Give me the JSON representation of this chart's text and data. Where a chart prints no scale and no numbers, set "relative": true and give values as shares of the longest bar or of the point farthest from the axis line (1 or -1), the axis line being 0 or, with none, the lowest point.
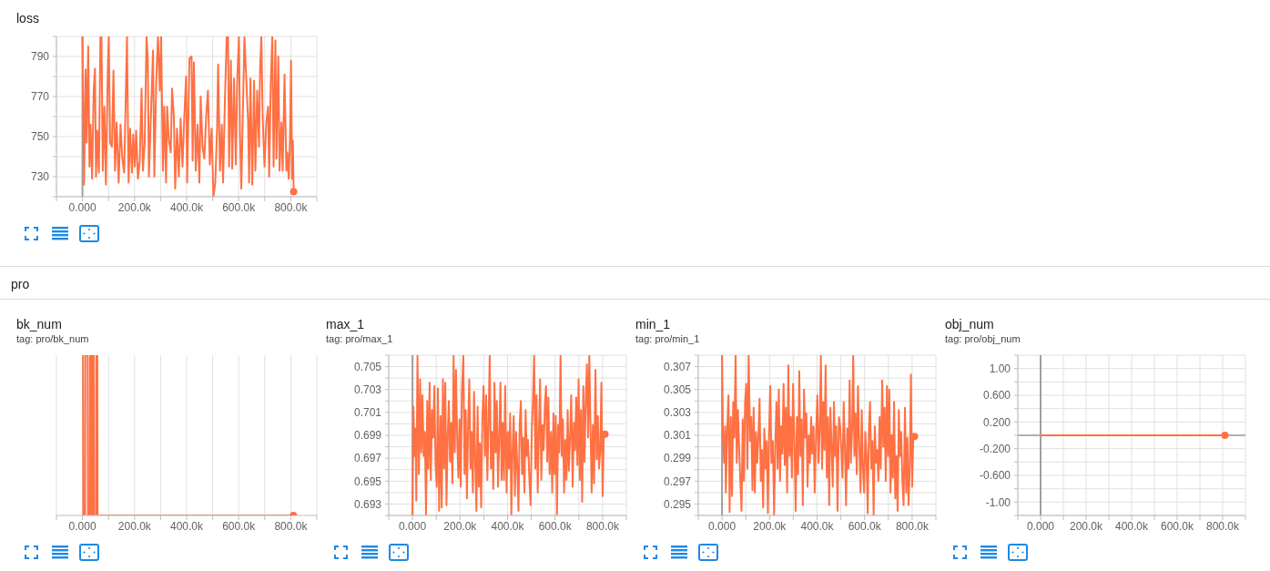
{
  "chart_data": [
    {
      "type": "line",
      "title": "loss",
      "x": [
        0,
        6000,
        12000,
        16000,
        22000,
        27000,
        31000,
        37000,
        43000,
        48000,
        52000,
        57000,
        63000,
        69000,
        73000,
        78000,
        84000,
        90000,
        97000,
        101000,
        106000,
        113000,
        119000,
        125000,
        131000,
        139000,
        146000,
        153000,
        160000,
        164000,
        171000,
        177000,
        183000,
        190000,
        195000,
        201000,
        206000,
        213000,
        220000,
        227000,
        232000,
        239000,
        246000,
        251000,
        255000,
        262000,
        271000,
        276000,
        283000,
        290000,
        297000,
        302000,
        309000,
        314000,
        321000,
        325000,
        332000,
        339000,
        344000,
        351000,
        356000,
        363000,
        370000,
        377000,
        384000,
        391000,
        398000,
        402000,
        411000,
        419000,
        423000,
        428000,
        435000,
        442000,
        449000,
        454000,
        461000,
        468000,
        475000,
        482000,
        489000,
        496000,
        503000,
        510000,
        517000,
        521000,
        528000,
        535000,
        540000,
        547000,
        554000,
        559000,
        563000,
        570000,
        575000,
        582000,
        589000,
        594000,
        601000,
        605000,
        610000,
        615000,
        622000,
        629000,
        636000,
        640000,
        645000,
        652000,
        659000,
        664000,
        671000,
        678000,
        682000,
        687000,
        692000,
        699000,
        706000,
        713000,
        717000,
        723000,
        729000,
        734000,
        741000,
        745000,
        752000,
        757000,
        764000,
        769000,
        776000,
        783000,
        787000,
        792000,
        797000,
        801000,
        805000,
        808000,
        811000
      ],
      "series": [
        {
          "color": "#ff7043",
          "values": [
            800,
            726,
            783.5,
            747,
            795,
            735,
            756,
            729,
            773,
            784,
            730,
            753,
            732,
            800,
            800,
            733,
            765,
            726,
            782,
            800,
            747,
            745,
            783,
            733,
            757,
            727,
            756,
            739,
            732,
            756,
            800,
            727,
            754,
            732,
            751,
            735,
            753,
            729,
            738,
            774,
            733,
            747,
            800,
            788,
            730,
            757,
            793,
            730,
            776,
            800,
            773,
            800,
            733,
            765,
            727,
            765,
            748,
            742,
            774,
            760,
            724,
            754,
            730,
            759,
            735,
            760,
            780,
            727,
            789,
            790,
            738,
            787,
            733,
            756,
            727,
            770,
            745,
            739,
            760,
            773,
            736,
            754,
            720,
            727,
            754,
            786,
            733,
            756,
            727,
            768,
            800,
            800,
            735,
            788,
            734,
            779,
            736,
            777,
            800,
            751,
            724,
            756,
            800,
            779,
            758,
            727,
            779,
            726,
            778,
            733,
            773,
            745,
            783,
            800,
            760,
            735,
            757,
            765,
            730,
            776,
            800,
            735,
            798,
            739,
            790,
            733,
            757,
            733,
            781,
            733,
            742,
            729,
            748,
            788,
            729,
            748,
            722.5
          ]
        },
        {
          "type": "scatter",
          "color": "#ff7043",
          "values": [
            null,
            null,
            null,
            null,
            null,
            null,
            null,
            null,
            null,
            null,
            null,
            null,
            null,
            null,
            null,
            null,
            null,
            null,
            null,
            null,
            null,
            null,
            null,
            null,
            null,
            null,
            null,
            null,
            null,
            null,
            null,
            null,
            null,
            null,
            null,
            null,
            null,
            null,
            null,
            null,
            null,
            null,
            null,
            null,
            null,
            null,
            null,
            null,
            null,
            null,
            null,
            null,
            null,
            null,
            null,
            null,
            null,
            null,
            null,
            null,
            null,
            null,
            null,
            null,
            null,
            null,
            null,
            null,
            null,
            null,
            null,
            null,
            null,
            null,
            null,
            null,
            null,
            null,
            null,
            null,
            null,
            null,
            null,
            null,
            null,
            null,
            null,
            null,
            null,
            null,
            null,
            null,
            null,
            null,
            null,
            null,
            null,
            null,
            null,
            null,
            null,
            null,
            null,
            null,
            null,
            null,
            null,
            null,
            null,
            null,
            null,
            null,
            null,
            null,
            null,
            null,
            null,
            null,
            null,
            null,
            null,
            null,
            null,
            null,
            null,
            null,
            null,
            null,
            null,
            null,
            null,
            null,
            null,
            null,
            null,
            null,
            722.5
          ]
        }
      ],
      "xlim": [
        -100000,
        900000
      ],
      "xticks": [
        {
          "value": -100000,
          "label": null
        },
        {
          "value": 0,
          "label": "0.000"
        },
        {
          "value": 100000,
          "label": null
        },
        {
          "value": 200000,
          "label": "200.0k"
        },
        {
          "value": 300000,
          "label": null
        },
        {
          "value": 400000,
          "label": "400.0k"
        },
        {
          "value": 500000,
          "label": null
        },
        {
          "value": 600000,
          "label": "600.0k"
        },
        {
          "value": 700000,
          "label": null
        },
        {
          "value": 800000,
          "label": "800.0k"
        },
        {
          "value": 900000,
          "label": null
        }
      ],
      "ylim": [
        720,
        800
      ],
      "yticks": [
        {
          "value": 720,
          "label": null
        },
        730,
        {
          "value": 740,
          "label": null
        },
        750,
        {
          "value": 760,
          "label": null
        },
        770,
        {
          "value": 780,
          "label": null
        },
        790,
        {
          "value": 800,
          "label": null
        }
      ],
      "grid": true,
      "ref_lines": [
        {
          "axis": "x",
          "value": 0,
          "color": "#9e9e9e"
        }
      ]
    },
    {
      "type": "line",
      "title": "bk_num",
      "subtitle": "tag: pro/bk_num",
      "annotations": [
        "pro"
      ],
      "relative": true,
      "x": [
        0,
        2000,
        3000,
        10000,
        11000,
        20000,
        21000,
        28000,
        29000,
        33000,
        34000,
        38000,
        39000,
        43000,
        44000,
        52000,
        53000,
        57000,
        58000,
        810000
      ],
      "series": [
        {
          "color": "#ff7043",
          "values": [
            1,
            1,
            0,
            0,
            1,
            1,
            0,
            0,
            1,
            1,
            0,
            0,
            1,
            1,
            0,
            0,
            1,
            1,
            0,
            0
          ]
        },
        {
          "type": "scatter",
          "color": "#ff7043",
          "values": [
            null,
            null,
            null,
            null,
            null,
            null,
            null,
            null,
            null,
            null,
            null,
            null,
            null,
            null,
            null,
            null,
            null,
            null,
            null,
            0
          ]
        }
      ],
      "xlim": [
        -100000,
        900000
      ],
      "xticks": [
        {
          "value": -100000,
          "label": null
        },
        {
          "value": 0,
          "label": "0.000"
        },
        {
          "value": 100000,
          "label": null
        },
        {
          "value": 200000,
          "label": "200.0k"
        },
        {
          "value": 300000,
          "label": null
        },
        {
          "value": 400000,
          "label": "400.0k"
        },
        {
          "value": 500000,
          "label": null
        },
        {
          "value": 600000,
          "label": "600.0k"
        },
        {
          "value": 700000,
          "label": null
        },
        {
          "value": 800000,
          "label": "800.0k"
        },
        {
          "value": 900000,
          "label": null
        }
      ],
      "grid": "x"
    },
    {
      "type": "line",
      "title": "max_1",
      "subtitle": "tag: pro/max_1",
      "x": [
        0,
        4000,
        9000,
        13000,
        16000,
        21000,
        27000,
        32000,
        37000,
        42000,
        47000,
        52000,
        57000,
        62000,
        67000,
        72000,
        77000,
        82000,
        87000,
        92000,
        97000,
        102000,
        107000,
        112000,
        118000,
        123000,
        128000,
        133000,
        138000,
        143000,
        148000,
        153000,
        158000,
        163000,
        168000,
        173000,
        178000,
        183000,
        188000,
        193000,
        198000,
        203000,
        208000,
        214000,
        219000,
        224000,
        229000,
        234000,
        239000,
        244000,
        249000,
        254000,
        259000,
        264000,
        269000,
        274000,
        279000,
        284000,
        289000,
        294000,
        299000,
        305000,
        310000,
        315000,
        320000,
        325000,
        330000,
        335000,
        340000,
        345000,
        350000,
        355000,
        360000,
        365000,
        370000,
        375000,
        380000,
        385000,
        390000,
        396000,
        401000,
        406000,
        411000,
        416000,
        421000,
        426000,
        431000,
        436000,
        441000,
        446000,
        451000,
        456000,
        461000,
        466000,
        471000,
        476000,
        481000,
        486000,
        492000,
        497000,
        502000,
        507000,
        512000,
        517000,
        522000,
        527000,
        532000,
        537000,
        542000,
        547000,
        552000,
        557000,
        562000,
        567000,
        572000,
        577000,
        583000,
        588000,
        593000,
        598000,
        603000,
        608000,
        613000,
        618000,
        623000,
        628000,
        633000,
        638000,
        643000,
        648000,
        653000,
        658000,
        663000,
        668000,
        674000,
        679000,
        684000,
        689000,
        694000,
        699000,
        704000,
        709000,
        714000,
        719000,
        724000,
        729000,
        734000,
        739000,
        744000,
        749000,
        754000,
        759000,
        764000,
        770000,
        775000,
        780000,
        785000,
        790000,
        795000,
        800000,
        805000,
        810000
      ],
      "series": [
        {
          "color": "#ff7043",
          "values": [
            0.692,
            0.7015,
            0.6972,
            0.6996,
            0.6933,
            0.706,
            0.6956,
            0.7039,
            0.6975,
            0.7025,
            0.6972,
            0.6993,
            0.692,
            0.702,
            0.6961,
            0.7036,
            0.6951,
            0.7012,
            0.6988,
            0.7033,
            0.6964,
            0.6945,
            0.7031,
            0.6924,
            0.7007,
            0.6927,
            0.7039,
            0.6961,
            0.7036,
            0.6929,
            0.6988,
            0.702,
            0.6967,
            0.7001,
            0.6948,
            0.706,
            0.6975,
            0.7047,
            0.6988,
            0.6953,
            0.7004,
            0.6945,
            0.7028,
            0.706,
            0.6956,
            0.7012,
            0.6935,
            0.6999,
            0.7039,
            0.6961,
            0.6993,
            0.694,
            0.7028,
            0.6967,
            0.6924,
            0.7015,
            0.6945,
            0.6983,
            0.6927,
            0.7004,
            0.7033,
            0.6972,
            0.7025,
            0.6951,
            0.7001,
            0.706,
            0.6961,
            0.6993,
            0.6943,
            0.7036,
            0.6975,
            0.702,
            0.6945,
            0.6988,
            0.7036,
            0.6951,
            0.7001,
            0.6951,
            0.7033,
            0.694,
            0.6993,
            0.6961,
            0.7009,
            0.6921,
            0.6977,
            0.7007,
            0.6937,
            0.6993,
            0.6961,
            0.6924,
            0.6999,
            0.702,
            0.6956,
            0.6988,
            0.694,
            0.7012,
            0.6972,
            0.6986,
            0.6951,
            0.6929,
            0.6993,
            0.702,
            0.706,
            0.6961,
            0.7025,
            0.694,
            0.6993,
            0.7039,
            0.6951,
            0.6999,
            0.6977,
            0.7015,
            0.7033,
            0.6967,
            0.7023,
            0.6956,
            0.6993,
            0.694,
            0.7009,
            0.6956,
            0.7007,
            0.6921,
            0.6999,
            0.6975,
            0.706,
            0.6972,
            0.7004,
            0.694,
            0.6986,
            0.6951,
            0.7012,
            0.6959,
            0.6988,
            0.7025,
            0.6945,
            0.7001,
            0.6977,
            0.7023,
            0.6964,
            0.7039,
            0.6951,
            0.7012,
            0.6932,
            0.7033,
            0.6967,
            0.702,
            0.7052,
            0.6988,
            0.706,
            0.6999,
            0.694,
            0.6999,
            0.6948,
            0.7047,
            0.6969,
            0.7007,
            0.6961,
            0.6977,
            0.7036,
            0.6937,
            0.699,
            0.6991
          ]
        },
        {
          "type": "scatter",
          "color": "#ff7043",
          "values": [
            null,
            null,
            null,
            null,
            null,
            null,
            null,
            null,
            null,
            null,
            null,
            null,
            null,
            null,
            null,
            null,
            null,
            null,
            null,
            null,
            null,
            null,
            null,
            null,
            null,
            null,
            null,
            null,
            null,
            null,
            null,
            null,
            null,
            null,
            null,
            null,
            null,
            null,
            null,
            null,
            null,
            null,
            null,
            null,
            null,
            null,
            null,
            null,
            null,
            null,
            null,
            null,
            null,
            null,
            null,
            null,
            null,
            null,
            null,
            null,
            null,
            null,
            null,
            null,
            null,
            null,
            null,
            null,
            null,
            null,
            null,
            null,
            null,
            null,
            null,
            null,
            null,
            null,
            null,
            null,
            null,
            null,
            null,
            null,
            null,
            null,
            null,
            null,
            null,
            null,
            null,
            null,
            null,
            null,
            null,
            null,
            null,
            null,
            null,
            null,
            null,
            null,
            null,
            null,
            null,
            null,
            null,
            null,
            null,
            null,
            null,
            null,
            null,
            null,
            null,
            null,
            null,
            null,
            null,
            null,
            null,
            null,
            null,
            null,
            null,
            null,
            null,
            null,
            null,
            null,
            null,
            null,
            null,
            null,
            null,
            null,
            null,
            null,
            null,
            null,
            null,
            null,
            null,
            null,
            null,
            null,
            null,
            null,
            null,
            null,
            null,
            null,
            null,
            null,
            null,
            null,
            null,
            null,
            null,
            null,
            null,
            0.6991
          ]
        }
      ],
      "xlim": [
        -100000,
        900000
      ],
      "xticks": [
        {
          "value": -100000,
          "label": null
        },
        {
          "value": 0,
          "label": "0.000"
        },
        {
          "value": 100000,
          "label": null
        },
        {
          "value": 200000,
          "label": "200.0k"
        },
        {
          "value": 300000,
          "label": null
        },
        {
          "value": 400000,
          "label": "400.0k"
        },
        {
          "value": 500000,
          "label": null
        },
        {
          "value": 600000,
          "label": "600.0k"
        },
        {
          "value": 700000,
          "label": null
        },
        {
          "value": 800000,
          "label": "800.0k"
        },
        {
          "value": 900000,
          "label": null
        }
      ],
      "ylim": [
        0.692,
        0.706
      ],
      "yticks": [
        {
          "value": 0.692,
          "label": null
        },
        0.693,
        {
          "value": 0.694,
          "label": null
        },
        0.695,
        {
          "value": 0.696,
          "label": null
        },
        0.697,
        {
          "value": 0.698,
          "label": null
        },
        0.699,
        {
          "value": 0.7,
          "label": null
        },
        0.701,
        {
          "value": 0.702,
          "label": null
        },
        0.703,
        {
          "value": 0.704,
          "label": null
        },
        0.705,
        {
          "value": 0.706,
          "label": null
        }
      ],
      "grid": true,
      "ref_lines": [
        {
          "axis": "x",
          "value": 0,
          "color": "#9e9e9e"
        }
      ]
    },
    {
      "type": "line",
      "title": "min_1",
      "subtitle": "tag: pro/min_1",
      "x": [
        0,
        4000,
        9000,
        13000,
        16000,
        21000,
        27000,
        32000,
        37000,
        42000,
        47000,
        52000,
        57000,
        62000,
        67000,
        72000,
        77000,
        82000,
        87000,
        92000,
        97000,
        102000,
        107000,
        112000,
        118000,
        123000,
        128000,
        133000,
        138000,
        143000,
        148000,
        153000,
        158000,
        163000,
        168000,
        173000,
        178000,
        183000,
        188000,
        193000,
        198000,
        203000,
        208000,
        214000,
        219000,
        224000,
        229000,
        234000,
        239000,
        244000,
        249000,
        254000,
        259000,
        264000,
        269000,
        274000,
        279000,
        284000,
        289000,
        294000,
        299000,
        305000,
        310000,
        315000,
        320000,
        325000,
        330000,
        335000,
        340000,
        345000,
        350000,
        355000,
        360000,
        365000,
        370000,
        375000,
        380000,
        385000,
        390000,
        396000,
        401000,
        406000,
        411000,
        416000,
        421000,
        426000,
        431000,
        436000,
        441000,
        446000,
        451000,
        456000,
        461000,
        466000,
        471000,
        476000,
        481000,
        486000,
        492000,
        497000,
        502000,
        507000,
        512000,
        517000,
        522000,
        527000,
        532000,
        537000,
        542000,
        547000,
        552000,
        557000,
        562000,
        567000,
        572000,
        577000,
        583000,
        588000,
        593000,
        598000,
        603000,
        608000,
        613000,
        618000,
        623000,
        628000,
        633000,
        638000,
        643000,
        648000,
        653000,
        658000,
        663000,
        668000,
        674000,
        679000,
        684000,
        689000,
        694000,
        699000,
        704000,
        709000,
        714000,
        719000,
        724000,
        729000,
        734000,
        739000,
        744000,
        749000,
        754000,
        759000,
        764000,
        770000,
        775000,
        780000,
        785000,
        790000,
        795000,
        800000,
        805000,
        810000
      ],
      "series": [
        {
          "color": "#ff7043",
          "values": [
            0.308,
            0.3008,
            0.2986,
            0.3018,
            0.296,
            0.301,
            0.3045,
            0.2943,
            0.3026,
            0.2957,
            0.3039,
            0.3008,
            0.308,
            0.2986,
            0.3032,
            0.3,
            0.297,
            0.2944,
            0.3024,
            0.297,
            0.3039,
            0.3055,
            0.2981,
            0.308,
            0.3005,
            0.3026,
            0.2962,
            0.3034,
            0.296,
            0.3013,
            0.2986,
            0.3008,
            0.3042,
            0.297,
            0.2997,
            0.2947,
            0.3016,
            0.2981,
            0.3005,
            0.2942,
            0.3013,
            0.3053,
            0.2986,
            0.3005,
            0.294,
            0.3,
            0.3039,
            0.2981,
            0.305,
            0.297,
            0.3018,
            0.2994,
            0.3055,
            0.2984,
            0.3034,
            0.296,
            0.3071,
            0.2992,
            0.3026,
            0.2973,
            0.3055,
            0.3,
            0.2944,
            0.3026,
            0.2976,
            0.3066,
            0.2992,
            0.3024,
            0.2949,
            0.305,
            0.3008,
            0.3029,
            0.2965,
            0.301,
            0.2986,
            0.3026,
            0.2994,
            0.3018,
            0.296,
            0.3013,
            0.3045,
            0.2986,
            0.3013,
            0.308,
            0.2981,
            0.3039,
            0.2997,
            0.3071,
            0.2973,
            0.3026,
            0.2949,
            0.3034,
            0.3,
            0.2965,
            0.3039,
            0.2992,
            0.3018,
            0.2944,
            0.3026,
            0.3018,
            0.2997,
            0.2973,
            0.3039,
            0.3,
            0.2949,
            0.3016,
            0.2981,
            0.3058,
            0.2986,
            0.3013,
            0.308,
            0.2992,
            0.3029,
            0.2976,
            0.3053,
            0.3005,
            0.296,
            0.3032,
            0.2981,
            0.296,
            0.3013,
            0.2992,
            0.2942,
            0.3013,
            0.3039,
            0.2981,
            0.3005,
            0.294,
            0.3018,
            0.2986,
            0.2997,
            0.297,
            0.3026,
            0.2981,
            0.3058,
            0.3,
            0.3034,
            0.297,
            0.3053,
            0.2992,
            0.305,
            0.296,
            0.301,
            0.2973,
            0.3039,
            0.2955,
            0.2992,
            0.2944,
            0.3032,
            0.2992,
            0.3013,
            0.297,
            0.2949,
            0.3034,
            0.296,
            0.3008,
            0.2949,
            0.2981,
            0.3063,
            0.2965,
            0.3008,
            0.3009
          ]
        },
        {
          "type": "scatter",
          "color": "#ff7043",
          "values": [
            null,
            null,
            null,
            null,
            null,
            null,
            null,
            null,
            null,
            null,
            null,
            null,
            null,
            null,
            null,
            null,
            null,
            null,
            null,
            null,
            null,
            null,
            null,
            null,
            null,
            null,
            null,
            null,
            null,
            null,
            null,
            null,
            null,
            null,
            null,
            null,
            null,
            null,
            null,
            null,
            null,
            null,
            null,
            null,
            null,
            null,
            null,
            null,
            null,
            null,
            null,
            null,
            null,
            null,
            null,
            null,
            null,
            null,
            null,
            null,
            null,
            null,
            null,
            null,
            null,
            null,
            null,
            null,
            null,
            null,
            null,
            null,
            null,
            null,
            null,
            null,
            null,
            null,
            null,
            null,
            null,
            null,
            null,
            null,
            null,
            null,
            null,
            null,
            null,
            null,
            null,
            null,
            null,
            null,
            null,
            null,
            null,
            null,
            null,
            null,
            null,
            null,
            null,
            null,
            null,
            null,
            null,
            null,
            null,
            null,
            null,
            null,
            null,
            null,
            null,
            null,
            null,
            null,
            null,
            null,
            null,
            null,
            null,
            null,
            null,
            null,
            null,
            null,
            null,
            null,
            null,
            null,
            null,
            null,
            null,
            null,
            null,
            null,
            null,
            null,
            null,
            null,
            null,
            null,
            null,
            null,
            null,
            null,
            null,
            null,
            null,
            null,
            null,
            null,
            null,
            null,
            null,
            null,
            null,
            null,
            null,
            0.3009
          ]
        }
      ],
      "xlim": [
        -100000,
        900000
      ],
      "xticks": [
        {
          "value": -100000,
          "label": null
        },
        {
          "value": 0,
          "label": "0.000"
        },
        {
          "value": 100000,
          "label": null
        },
        {
          "value": 200000,
          "label": "200.0k"
        },
        {
          "value": 300000,
          "label": null
        },
        {
          "value": 400000,
          "label": "400.0k"
        },
        {
          "value": 500000,
          "label": null
        },
        {
          "value": 600000,
          "label": "600.0k"
        },
        {
          "value": 700000,
          "label": null
        },
        {
          "value": 800000,
          "label": "800.0k"
        },
        {
          "value": 900000,
          "label": null
        }
      ],
      "ylim": [
        0.294,
        0.308
      ],
      "yticks": [
        {
          "value": 0.294,
          "label": null
        },
        0.295,
        {
          "value": 0.296,
          "label": null
        },
        0.297,
        {
          "value": 0.298,
          "label": null
        },
        0.299,
        {
          "value": 0.3,
          "label": null
        },
        0.301,
        {
          "value": 0.302,
          "label": null
        },
        0.303,
        {
          "value": 0.304,
          "label": null
        },
        0.305,
        {
          "value": 0.306,
          "label": null
        },
        0.307,
        {
          "value": 0.308,
          "label": null
        }
      ],
      "grid": true,
      "ref_lines": [
        {
          "axis": "x",
          "value": 0,
          "color": "#9e9e9e"
        }
      ]
    },
    {
      "type": "line",
      "title": "obj_num",
      "subtitle": "tag: pro/obj_num",
      "x": [
        0,
        810000
      ],
      "series": [
        {
          "color": "#ff7043",
          "values": [
            0,
            0
          ]
        },
        {
          "type": "scatter",
          "color": "#ff7043",
          "values": [
            null,
            0
          ]
        }
      ],
      "xlim": [
        -100000,
        900000
      ],
      "xticks": [
        {
          "value": -100000,
          "label": null
        },
        {
          "value": 0,
          "label": "0.000"
        },
        {
          "value": 100000,
          "label": null
        },
        {
          "value": 200000,
          "label": "200.0k"
        },
        {
          "value": 300000,
          "label": null
        },
        {
          "value": 400000,
          "label": "400.0k"
        },
        {
          "value": 500000,
          "label": null
        },
        {
          "value": 600000,
          "label": "600.0k"
        },
        {
          "value": 700000,
          "label": null
        },
        {
          "value": 800000,
          "label": "800.0k"
        },
        {
          "value": 900000,
          "label": null
        }
      ],
      "ylim": [
        -1.2,
        1.2
      ],
      "yticks": [
        {
          "value": -1.2,
          "label": null
        },
        {
          "value": -1,
          "label": "-1.00"
        },
        {
          "value": -0.8,
          "label": null
        },
        {
          "value": -0.6,
          "label": "-0.600"
        },
        {
          "value": -0.4,
          "label": null
        },
        {
          "value": -0.2,
          "label": "-0.200"
        },
        {
          "value": 0,
          "label": null
        },
        {
          "value": 0.2,
          "label": "0.200"
        },
        {
          "value": 0.4,
          "label": null
        },
        {
          "value": 0.6,
          "label": "0.600"
        },
        {
          "value": 0.8,
          "label": null
        },
        {
          "value": 1,
          "label": "1.00"
        },
        {
          "value": 1.2,
          "label": null
        }
      ],
      "grid": true,
      "ref_lines": [
        {
          "axis": "x",
          "value": 0,
          "color": "#9e9e9e"
        },
        {
          "axis": "y",
          "value": 0,
          "color": "#b0b0b0"
        }
      ]
    }
  ]
}
